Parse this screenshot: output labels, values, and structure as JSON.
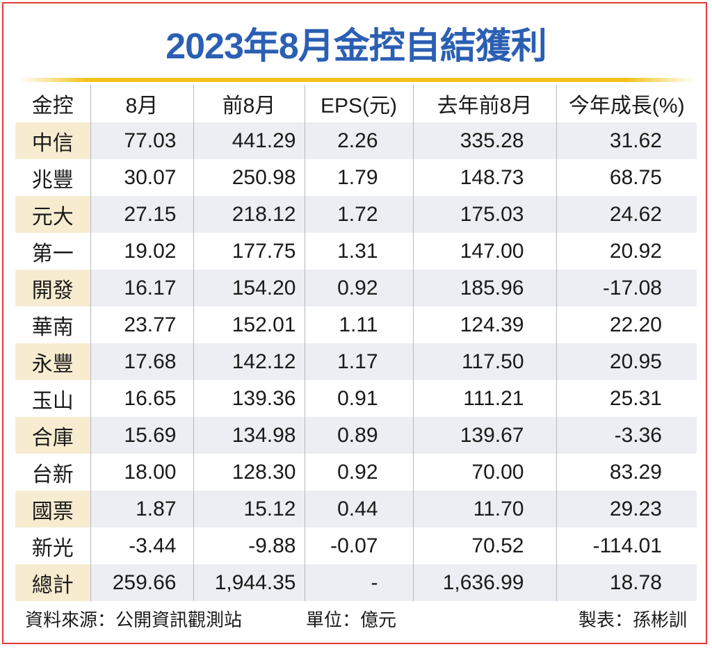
{
  "title": "2023年8月金控自結獲利",
  "columns": [
    "金控",
    "8月",
    "前8月",
    "EPS(元)",
    "去年前8月",
    "今年成長(%)"
  ],
  "rows": [
    [
      "中信",
      "77.03",
      "441.29",
      "2.26",
      "335.28",
      "31.62"
    ],
    [
      "兆豐",
      "30.07",
      "250.98",
      "1.79",
      "148.73",
      "68.75"
    ],
    [
      "元大",
      "27.15",
      "218.12",
      "1.72",
      "175.03",
      "24.62"
    ],
    [
      "第一",
      "19.02",
      "177.75",
      "1.31",
      "147.00",
      "20.92"
    ],
    [
      "開發",
      "16.17",
      "154.20",
      "0.92",
      "185.96",
      "-17.08"
    ],
    [
      "華南",
      "23.77",
      "152.01",
      "1.11",
      "124.39",
      "22.20"
    ],
    [
      "永豐",
      "17.68",
      "142.12",
      "1.17",
      "117.50",
      "20.95"
    ],
    [
      "玉山",
      "16.65",
      "139.36",
      "0.91",
      "111.21",
      "25.31"
    ],
    [
      "合庫",
      "15.69",
      "134.98",
      "0.89",
      "139.67",
      "-3.36"
    ],
    [
      "台新",
      "18.00",
      "128.30",
      "0.92",
      "70.00",
      "83.29"
    ],
    [
      "國票",
      "1.87",
      "15.12",
      "0.44",
      "11.70",
      "29.23"
    ],
    [
      "新光",
      "-3.44",
      "-9.88",
      "-0.07",
      "70.52",
      "-114.01"
    ],
    [
      "總計",
      "259.66",
      "1,944.35",
      "-",
      "1,636.99",
      "18.78"
    ]
  ],
  "footer": {
    "source": "資料來源：公開資訊觀測站",
    "unit": "單位：億元",
    "maker": "製表：孫彬訓"
  },
  "colors": {
    "title": "#2b5fb3",
    "rule": "#f3c21b",
    "stripe": "#eceef3",
    "name_stripe": "#f7ecd0",
    "border": "#e53935"
  },
  "chart_data": {
    "type": "table",
    "title": "2023年8月金控自結獲利",
    "columns": [
      "金控",
      "8月",
      "前8月",
      "EPS(元)",
      "去年前8月",
      "今年成長(%)"
    ],
    "rows": [
      [
        "中信",
        77.03,
        441.29,
        2.26,
        335.28,
        31.62
      ],
      [
        "兆豐",
        30.07,
        250.98,
        1.79,
        148.73,
        68.75
      ],
      [
        "元大",
        27.15,
        218.12,
        1.72,
        175.03,
        24.62
      ],
      [
        "第一",
        19.02,
        177.75,
        1.31,
        147.0,
        20.92
      ],
      [
        "開發",
        16.17,
        154.2,
        0.92,
        185.96,
        -17.08
      ],
      [
        "華南",
        23.77,
        152.01,
        1.11,
        124.39,
        22.2
      ],
      [
        "永豐",
        17.68,
        142.12,
        1.17,
        117.5,
        20.95
      ],
      [
        "玉山",
        16.65,
        139.36,
        0.91,
        111.21,
        25.31
      ],
      [
        "合庫",
        15.69,
        134.98,
        0.89,
        139.67,
        -3.36
      ],
      [
        "台新",
        18.0,
        128.3,
        0.92,
        70.0,
        83.29
      ],
      [
        "國票",
        1.87,
        15.12,
        0.44,
        11.7,
        29.23
      ],
      [
        "新光",
        -3.44,
        -9.88,
        -0.07,
        70.52,
        -114.01
      ],
      [
        "總計",
        259.66,
        1944.35,
        null,
        1636.99,
        18.78
      ]
    ]
  }
}
